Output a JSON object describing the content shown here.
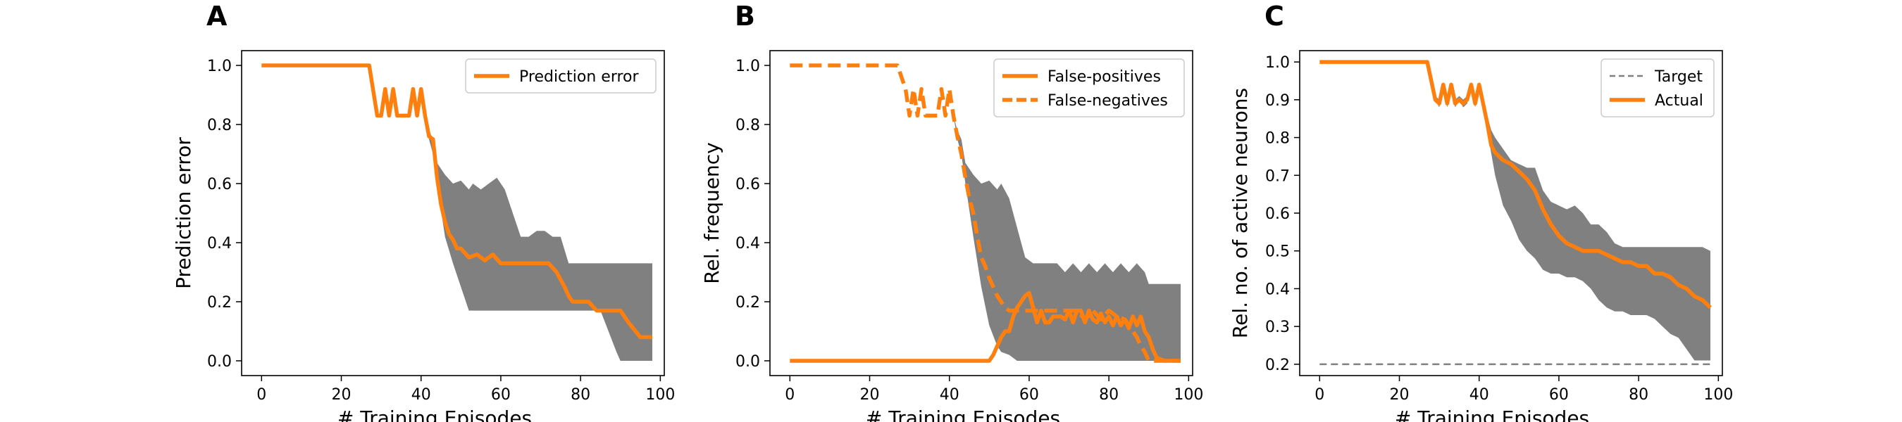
{
  "colors": {
    "orange": "#ff7f0e",
    "band": "#808080",
    "target": "#808080",
    "axis": "#000000"
  },
  "chart_data": [
    {
      "type": "line",
      "panel_label": "A",
      "xlabel": "# Training Episodes",
      "ylabel": "Prediction error",
      "xlim": [
        -5,
        101
      ],
      "ylim": [
        -0.05,
        1.05
      ],
      "xticks": [
        0,
        20,
        40,
        60,
        80,
        100
      ],
      "yticks": [
        0.0,
        0.2,
        0.4,
        0.6,
        0.8,
        1.0
      ],
      "ytick_decimals": 1,
      "grid": false,
      "legend_position": "top-right",
      "band": {
        "x": [
          0,
          27,
          29,
          30,
          31,
          32,
          33,
          34,
          35,
          36,
          37,
          38,
          39,
          40,
          41,
          42,
          43,
          44,
          46,
          48,
          50,
          52,
          53,
          55,
          57,
          59,
          61,
          63,
          65,
          67,
          69,
          71,
          73,
          75,
          77,
          79,
          81,
          83,
          85,
          87,
          89,
          90,
          92,
          95,
          98
        ],
        "low": [
          1.0,
          1.0,
          0.83,
          0.83,
          0.92,
          0.83,
          0.92,
          0.83,
          0.83,
          0.83,
          0.83,
          0.92,
          0.83,
          0.92,
          0.83,
          0.75,
          0.7,
          0.6,
          0.42,
          0.33,
          0.25,
          0.17,
          0.17,
          0.17,
          0.17,
          0.17,
          0.17,
          0.17,
          0.17,
          0.17,
          0.17,
          0.17,
          0.17,
          0.17,
          0.17,
          0.17,
          0.17,
          0.17,
          0.17,
          0.1,
          0.03,
          0.0,
          0.0,
          0.0,
          0.0
        ],
        "high": [
          1.0,
          1.0,
          0.83,
          0.83,
          0.92,
          0.83,
          0.92,
          0.83,
          0.83,
          0.83,
          0.83,
          0.92,
          0.83,
          0.92,
          0.83,
          0.78,
          0.75,
          0.67,
          0.63,
          0.6,
          0.61,
          0.58,
          0.6,
          0.58,
          0.6,
          0.62,
          0.58,
          0.5,
          0.42,
          0.42,
          0.44,
          0.44,
          0.42,
          0.42,
          0.33,
          0.33,
          0.33,
          0.33,
          0.33,
          0.33,
          0.33,
          0.33,
          0.33,
          0.33,
          0.33
        ]
      },
      "series": [
        {
          "name": "Prediction error",
          "dash": "solid",
          "x": [
            0,
            27,
            29,
            30,
            31,
            32,
            33,
            34,
            35,
            36,
            37,
            38,
            39,
            40,
            41,
            42,
            43,
            44,
            45,
            46,
            47,
            48,
            49,
            50,
            52,
            54,
            56,
            58,
            60,
            62,
            64,
            66,
            68,
            70,
            72,
            74,
            76,
            77,
            78,
            79,
            80,
            82,
            84,
            86,
            88,
            90,
            92,
            95,
            96,
            98
          ],
          "y": [
            1.0,
            1.0,
            0.83,
            0.83,
            0.92,
            0.83,
            0.92,
            0.83,
            0.83,
            0.83,
            0.83,
            0.92,
            0.83,
            0.92,
            0.83,
            0.76,
            0.75,
            0.62,
            0.53,
            0.47,
            0.43,
            0.41,
            0.38,
            0.38,
            0.35,
            0.36,
            0.34,
            0.36,
            0.33,
            0.33,
            0.33,
            0.33,
            0.33,
            0.33,
            0.33,
            0.3,
            0.25,
            0.22,
            0.2,
            0.2,
            0.2,
            0.2,
            0.17,
            0.17,
            0.17,
            0.17,
            0.13,
            0.08,
            0.08,
            0.08
          ]
        }
      ]
    },
    {
      "type": "line",
      "panel_label": "B",
      "xlabel": "# Training Episodes",
      "ylabel": "Rel. frequency",
      "xlim": [
        -5,
        101
      ],
      "ylim": [
        -0.05,
        1.05
      ],
      "xticks": [
        0,
        20,
        40,
        60,
        80,
        100
      ],
      "yticks": [
        0.0,
        0.2,
        0.4,
        0.6,
        0.8,
        1.0
      ],
      "ytick_decimals": 1,
      "grid": false,
      "legend_position": "top-right",
      "band": {
        "x": [
          0,
          27,
          29,
          30,
          31,
          32,
          33,
          34,
          35,
          36,
          37,
          38,
          39,
          40,
          41,
          42,
          43,
          44,
          46,
          48,
          50,
          52,
          53,
          55,
          57,
          59,
          61,
          63,
          65,
          67,
          69,
          71,
          73,
          75,
          77,
          79,
          81,
          83,
          85,
          87,
          89,
          90,
          92,
          95,
          98
        ],
        "low": [
          1.0,
          1.0,
          0.83,
          0.83,
          0.92,
          0.83,
          0.92,
          0.83,
          0.83,
          0.83,
          0.83,
          0.92,
          0.83,
          0.92,
          0.83,
          0.75,
          0.7,
          0.6,
          0.42,
          0.25,
          0.12,
          0.05,
          0.03,
          0.02,
          0.0,
          0.0,
          0.0,
          0.0,
          0.0,
          0.0,
          0.0,
          0.0,
          0.0,
          0.0,
          0.0,
          0.0,
          0.0,
          0.0,
          0.0,
          0.0,
          0.0,
          0.0,
          0.0,
          0.0,
          0.0
        ],
        "high": [
          1.0,
          1.0,
          0.83,
          0.83,
          0.92,
          0.83,
          0.92,
          0.83,
          0.83,
          0.83,
          0.83,
          0.92,
          0.83,
          0.92,
          0.83,
          0.78,
          0.75,
          0.67,
          0.63,
          0.6,
          0.61,
          0.58,
          0.6,
          0.55,
          0.45,
          0.35,
          0.33,
          0.33,
          0.33,
          0.33,
          0.3,
          0.33,
          0.3,
          0.33,
          0.3,
          0.33,
          0.3,
          0.33,
          0.3,
          0.33,
          0.3,
          0.26,
          0.26,
          0.26,
          0.26
        ]
      },
      "series": [
        {
          "name": "False-positives",
          "dash": "solid",
          "x": [
            0,
            50,
            51,
            52,
            53,
            54,
            55,
            56,
            57,
            58,
            59,
            60,
            61,
            62,
            63,
            64,
            65,
            66,
            67,
            68,
            69,
            70,
            71,
            72,
            73,
            74,
            75,
            76,
            77,
            78,
            79,
            80,
            81,
            82,
            83,
            84,
            85,
            86,
            87,
            88,
            89,
            90,
            91,
            92,
            94,
            96,
            98
          ],
          "y": [
            0.0,
            0.0,
            0.02,
            0.05,
            0.08,
            0.1,
            0.1,
            0.15,
            0.18,
            0.2,
            0.22,
            0.23,
            0.18,
            0.13,
            0.17,
            0.13,
            0.13,
            0.15,
            0.15,
            0.15,
            0.14,
            0.17,
            0.13,
            0.17,
            0.17,
            0.13,
            0.17,
            0.14,
            0.13,
            0.16,
            0.13,
            0.15,
            0.12,
            0.15,
            0.12,
            0.14,
            0.11,
            0.15,
            0.12,
            0.15,
            0.1,
            0.08,
            0.04,
            0.01,
            0.0,
            0.0,
            0.0
          ]
        },
        {
          "name": "False-negatives",
          "dash": "dashed",
          "x": [
            0,
            27,
            29,
            30,
            31,
            32,
            33,
            34,
            35,
            36,
            37,
            38,
            39,
            40,
            41,
            42,
            43,
            44,
            45,
            46,
            47,
            48,
            49,
            50,
            51,
            52,
            53,
            54,
            55,
            56,
            58,
            60,
            62,
            64,
            66,
            68,
            70,
            72,
            74,
            76,
            78,
            80,
            82,
            84,
            85,
            86,
            87,
            88,
            89,
            90,
            92,
            95,
            98
          ],
          "y": [
            1.0,
            1.0,
            0.92,
            0.83,
            0.92,
            0.83,
            0.92,
            0.83,
            0.83,
            0.83,
            0.83,
            0.92,
            0.83,
            0.92,
            0.83,
            0.76,
            0.7,
            0.62,
            0.55,
            0.5,
            0.42,
            0.35,
            0.32,
            0.28,
            0.25,
            0.22,
            0.2,
            0.18,
            0.17,
            0.17,
            0.17,
            0.17,
            0.17,
            0.17,
            0.17,
            0.17,
            0.17,
            0.17,
            0.14,
            0.17,
            0.14,
            0.17,
            0.15,
            0.14,
            0.12,
            0.1,
            0.08,
            0.05,
            0.03,
            0.0,
            0.0,
            0.0,
            0.0
          ]
        }
      ]
    },
    {
      "type": "line",
      "panel_label": "C",
      "xlabel": "# Training Episodes",
      "ylabel": "Rel. no. of active neurons",
      "xlim": [
        -5,
        101
      ],
      "ylim": [
        0.17,
        1.03
      ],
      "xticks": [
        0,
        20,
        40,
        60,
        80,
        100
      ],
      "yticks": [
        0.2,
        0.3,
        0.4,
        0.5,
        0.6,
        0.7,
        0.8,
        0.9,
        1.0
      ],
      "ytick_decimals": 1,
      "grid": false,
      "legend_position": "top-right",
      "band": {
        "x": [
          0,
          27,
          29,
          30,
          31,
          32,
          33,
          34,
          35,
          36,
          37,
          38,
          39,
          40,
          41,
          42,
          43,
          44,
          46,
          48,
          50,
          52,
          54,
          56,
          58,
          60,
          62,
          64,
          66,
          68,
          70,
          72,
          74,
          76,
          78,
          80,
          82,
          84,
          86,
          88,
          90,
          92,
          94,
          96,
          98
        ],
        "low": [
          1.0,
          1.0,
          0.9,
          0.88,
          0.93,
          0.88,
          0.93,
          0.88,
          0.9,
          0.88,
          0.89,
          0.93,
          0.88,
          0.93,
          0.88,
          0.82,
          0.76,
          0.7,
          0.62,
          0.58,
          0.53,
          0.5,
          0.48,
          0.45,
          0.44,
          0.44,
          0.43,
          0.43,
          0.42,
          0.4,
          0.37,
          0.35,
          0.34,
          0.34,
          0.33,
          0.33,
          0.33,
          0.32,
          0.3,
          0.28,
          0.27,
          0.24,
          0.21,
          0.21,
          0.21
        ],
        "high": [
          1.0,
          1.0,
          0.91,
          0.9,
          0.94,
          0.9,
          0.94,
          0.9,
          0.91,
          0.9,
          0.91,
          0.94,
          0.9,
          0.94,
          0.9,
          0.86,
          0.82,
          0.8,
          0.77,
          0.74,
          0.73,
          0.72,
          0.72,
          0.66,
          0.63,
          0.62,
          0.61,
          0.62,
          0.6,
          0.57,
          0.57,
          0.55,
          0.52,
          0.51,
          0.51,
          0.51,
          0.51,
          0.51,
          0.51,
          0.51,
          0.51,
          0.51,
          0.51,
          0.51,
          0.5
        ]
      },
      "series": [
        {
          "name": "Target",
          "dash": "dashed-thin",
          "x": [
            0,
            98
          ],
          "y": [
            0.2,
            0.2
          ]
        },
        {
          "name": "Actual",
          "dash": "solid",
          "x": [
            0,
            27,
            29,
            30,
            31,
            32,
            33,
            34,
            35,
            36,
            37,
            38,
            39,
            40,
            41,
            42,
            43,
            44,
            46,
            48,
            50,
            52,
            54,
            56,
            58,
            60,
            62,
            64,
            66,
            68,
            70,
            72,
            74,
            76,
            78,
            80,
            82,
            84,
            86,
            88,
            90,
            92,
            94,
            96,
            98
          ],
          "y": [
            1.0,
            1.0,
            0.9,
            0.89,
            0.94,
            0.89,
            0.94,
            0.89,
            0.9,
            0.89,
            0.9,
            0.94,
            0.89,
            0.94,
            0.89,
            0.84,
            0.78,
            0.76,
            0.74,
            0.73,
            0.71,
            0.69,
            0.66,
            0.61,
            0.57,
            0.54,
            0.52,
            0.51,
            0.5,
            0.5,
            0.5,
            0.49,
            0.48,
            0.47,
            0.47,
            0.46,
            0.46,
            0.44,
            0.44,
            0.43,
            0.41,
            0.4,
            0.38,
            0.37,
            0.35
          ]
        }
      ]
    }
  ]
}
